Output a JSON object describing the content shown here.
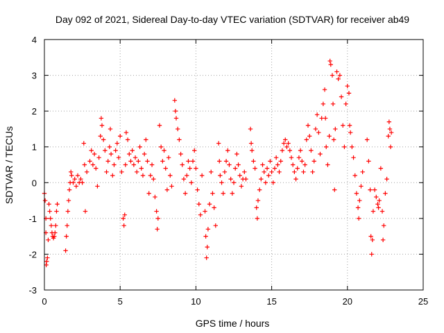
{
  "chart_data": {
    "type": "scatter",
    "title": "Day 092 of 2021, Sidereal Day-to-day VTEC variation (SDTVAR) for receiver ab49",
    "xlabel": "GPS time / hours",
    "ylabel": "SDTVAR / TECUs",
    "xlim": [
      0,
      25
    ],
    "ylim": [
      -3,
      4
    ],
    "xticks": [
      "0",
      "5",
      "10",
      "15",
      "20",
      "25"
    ],
    "yticks": [
      "-3",
      "-2",
      "-1",
      "0",
      "1",
      "2",
      "3",
      "4"
    ],
    "grid": true,
    "marker": "+",
    "color": "#ff0000",
    "series": [
      {
        "name": "SDTVAR",
        "points": [
          [
            0.0,
            -0.3
          ],
          [
            0.05,
            -0.5
          ],
          [
            0.1,
            -1.0
          ],
          [
            0.1,
            -1.4
          ],
          [
            0.12,
            -2.3
          ],
          [
            0.15,
            -2.2
          ],
          [
            0.2,
            -2.1
          ],
          [
            0.25,
            -1.6
          ],
          [
            0.3,
            -0.6
          ],
          [
            0.35,
            -0.8
          ],
          [
            0.4,
            -1.0
          ],
          [
            0.45,
            -1.2
          ],
          [
            0.5,
            -1.4
          ],
          [
            0.55,
            -1.5
          ],
          [
            0.6,
            -1.55
          ],
          [
            0.65,
            -1.5
          ],
          [
            0.7,
            -1.4
          ],
          [
            0.75,
            -1.2
          ],
          [
            0.8,
            -0.8
          ],
          [
            0.85,
            -0.6
          ],
          [
            1.4,
            -1.9
          ],
          [
            1.45,
            -1.5
          ],
          [
            1.5,
            -1.2
          ],
          [
            1.55,
            -0.8
          ],
          [
            1.6,
            -0.5
          ],
          [
            1.65,
            -0.2
          ],
          [
            1.7,
            0.0
          ],
          [
            1.75,
            0.3
          ],
          [
            1.8,
            0.2
          ],
          [
            1.9,
            0.0
          ],
          [
            2.0,
            0.1
          ],
          [
            2.1,
            -0.1
          ],
          [
            2.2,
            0.2
          ],
          [
            2.3,
            0.0
          ],
          [
            2.4,
            0.1
          ],
          [
            2.5,
            0.0
          ],
          [
            2.6,
            1.1
          ],
          [
            2.65,
            0.5
          ],
          [
            2.7,
            -0.8
          ],
          [
            2.8,
            0.3
          ],
          [
            3.0,
            0.6
          ],
          [
            3.1,
            0.9
          ],
          [
            3.2,
            0.5
          ],
          [
            3.3,
            0.8
          ],
          [
            3.4,
            0.4
          ],
          [
            3.5,
            -0.1
          ],
          [
            3.6,
            0.7
          ],
          [
            3.7,
            1.3
          ],
          [
            3.75,
            1.8
          ],
          [
            3.8,
            1.6
          ],
          [
            3.9,
            1.2
          ],
          [
            4.0,
            0.9
          ],
          [
            4.1,
            0.3
          ],
          [
            4.2,
            0.6
          ],
          [
            4.3,
            1.0
          ],
          [
            4.35,
            1.5
          ],
          [
            4.4,
            0.8
          ],
          [
            4.5,
            0.2
          ],
          [
            4.6,
            0.5
          ],
          [
            4.7,
            0.9
          ],
          [
            4.8,
            1.1
          ],
          [
            4.9,
            0.7
          ],
          [
            5.0,
            1.3
          ],
          [
            5.1,
            0.3
          ],
          [
            5.2,
            -1.0
          ],
          [
            5.25,
            -1.2
          ],
          [
            5.3,
            -0.9
          ],
          [
            5.35,
            0.5
          ],
          [
            5.4,
            1.4
          ],
          [
            5.5,
            1.2
          ],
          [
            5.6,
            0.8
          ],
          [
            5.7,
            0.6
          ],
          [
            5.8,
            0.9
          ],
          [
            5.9,
            0.5
          ],
          [
            6.0,
            0.7
          ],
          [
            6.1,
            0.3
          ],
          [
            6.2,
            0.6
          ],
          [
            6.3,
            1.0
          ],
          [
            6.4,
            0.4
          ],
          [
            6.5,
            0.2
          ],
          [
            6.6,
            0.8
          ],
          [
            6.7,
            1.2
          ],
          [
            6.8,
            0.6
          ],
          [
            6.9,
            -0.3
          ],
          [
            7.0,
            0.2
          ],
          [
            7.1,
            0.5
          ],
          [
            7.2,
            0.1
          ],
          [
            7.3,
            -0.4
          ],
          [
            7.4,
            -0.8
          ],
          [
            7.45,
            -1.3
          ],
          [
            7.5,
            -1.0
          ],
          [
            7.6,
            1.6
          ],
          [
            7.7,
            1.0
          ],
          [
            7.8,
            0.6
          ],
          [
            7.9,
            0.9
          ],
          [
            8.0,
            0.4
          ],
          [
            8.1,
            -0.2
          ],
          [
            8.2,
            0.7
          ],
          [
            8.3,
            0.2
          ],
          [
            8.4,
            -0.1
          ],
          [
            8.6,
            2.3
          ],
          [
            8.65,
            2.0
          ],
          [
            8.7,
            1.8
          ],
          [
            8.8,
            1.5
          ],
          [
            8.9,
            1.2
          ],
          [
            9.0,
            0.8
          ],
          [
            9.1,
            0.5
          ],
          [
            9.2,
            0.1
          ],
          [
            9.3,
            -0.3
          ],
          [
            9.4,
            0.2
          ],
          [
            9.5,
            0.6
          ],
          [
            9.6,
            0.4
          ],
          [
            9.7,
            0.0
          ],
          [
            9.8,
            0.6
          ],
          [
            9.9,
            0.9
          ],
          [
            10.0,
            0.4
          ],
          [
            10.1,
            -0.2
          ],
          [
            10.2,
            -0.6
          ],
          [
            10.3,
            -0.9
          ],
          [
            10.4,
            0.2
          ],
          [
            10.6,
            -0.8
          ],
          [
            10.65,
            -1.5
          ],
          [
            10.7,
            -2.1
          ],
          [
            10.75,
            -1.8
          ],
          [
            10.8,
            -1.3
          ],
          [
            10.9,
            -0.6
          ],
          [
            11.0,
            0.3
          ],
          [
            11.1,
            -0.3
          ],
          [
            11.2,
            -0.7
          ],
          [
            11.3,
            -1.2
          ],
          [
            11.5,
            1.1
          ],
          [
            11.55,
            0.6
          ],
          [
            11.6,
            0.2
          ],
          [
            11.7,
            0.0
          ],
          [
            11.8,
            -0.3
          ],
          [
            11.9,
            0.3
          ],
          [
            12.0,
            0.6
          ],
          [
            12.1,
            0.9
          ],
          [
            12.2,
            0.5
          ],
          [
            12.3,
            0.1
          ],
          [
            12.4,
            -0.3
          ],
          [
            12.5,
            0.0
          ],
          [
            12.6,
            0.4
          ],
          [
            12.7,
            0.8
          ],
          [
            12.8,
            0.5
          ],
          [
            12.9,
            0.2
          ],
          [
            13.0,
            -0.1
          ],
          [
            13.1,
            0.1
          ],
          [
            13.2,
            0.3
          ],
          [
            13.3,
            0.1
          ],
          [
            13.6,
            1.5
          ],
          [
            13.65,
            1.1
          ],
          [
            13.7,
            0.9
          ],
          [
            13.8,
            0.6
          ],
          [
            13.9,
            0.4
          ],
          [
            14.0,
            -0.7
          ],
          [
            14.05,
            -1.0
          ],
          [
            14.1,
            -0.5
          ],
          [
            14.2,
            -0.2
          ],
          [
            14.3,
            0.1
          ],
          [
            14.4,
            0.5
          ],
          [
            14.5,
            0.3
          ],
          [
            14.6,
            0.0
          ],
          [
            14.7,
            0.4
          ],
          [
            14.8,
            0.2
          ],
          [
            14.9,
            0.6
          ],
          [
            15.0,
            0.3
          ],
          [
            15.1,
            0.0
          ],
          [
            15.2,
            0.4
          ],
          [
            15.3,
            0.7
          ],
          [
            15.4,
            0.5
          ],
          [
            15.5,
            0.3
          ],
          [
            15.6,
            0.6
          ],
          [
            15.7,
            0.9
          ],
          [
            15.8,
            1.1
          ],
          [
            15.9,
            1.2
          ],
          [
            16.0,
            1.0
          ],
          [
            16.1,
            1.1
          ],
          [
            16.2,
            0.9
          ],
          [
            16.3,
            0.7
          ],
          [
            16.4,
            0.5
          ],
          [
            16.5,
            0.3
          ],
          [
            16.6,
            0.1
          ],
          [
            16.7,
            0.4
          ],
          [
            16.8,
            0.7
          ],
          [
            16.9,
            0.9
          ],
          [
            17.0,
            0.6
          ],
          [
            17.1,
            0.3
          ],
          [
            17.2,
            0.5
          ],
          [
            17.3,
            1.2
          ],
          [
            17.4,
            1.6
          ],
          [
            17.5,
            1.3
          ],
          [
            17.6,
            0.9
          ],
          [
            17.7,
            0.3
          ],
          [
            17.8,
            0.6
          ],
          [
            17.9,
            1.5
          ],
          [
            18.0,
            1.9
          ],
          [
            18.1,
            1.4
          ],
          [
            18.2,
            0.8
          ],
          [
            18.3,
            1.8
          ],
          [
            18.4,
            2.2
          ],
          [
            18.5,
            2.6
          ],
          [
            18.55,
            1.8
          ],
          [
            18.6,
            1.0
          ],
          [
            18.7,
            0.5
          ],
          [
            18.8,
            1.3
          ],
          [
            18.85,
            3.4
          ],
          [
            18.9,
            3.3
          ],
          [
            19.0,
            3.0
          ],
          [
            19.05,
            2.2
          ],
          [
            19.1,
            1.2
          ],
          [
            19.15,
            -0.2
          ],
          [
            19.2,
            1.5
          ],
          [
            19.3,
            3.1
          ],
          [
            19.4,
            2.9
          ],
          [
            19.5,
            3.0
          ],
          [
            19.6,
            2.4
          ],
          [
            19.7,
            1.6
          ],
          [
            19.8,
            1.0
          ],
          [
            19.9,
            2.2
          ],
          [
            20.0,
            2.7
          ],
          [
            20.1,
            2.5
          ],
          [
            20.15,
            1.6
          ],
          [
            20.2,
            1.4
          ],
          [
            20.3,
            1.0
          ],
          [
            20.4,
            0.7
          ],
          [
            20.5,
            0.2
          ],
          [
            20.6,
            -0.3
          ],
          [
            20.7,
            -0.7
          ],
          [
            20.75,
            -1.0
          ],
          [
            20.8,
            -0.5
          ],
          [
            20.9,
            -0.1
          ],
          [
            21.0,
            0.3
          ],
          [
            21.3,
            1.2
          ],
          [
            21.4,
            0.6
          ],
          [
            21.5,
            -0.2
          ],
          [
            21.55,
            -1.5
          ],
          [
            21.6,
            -2.0
          ],
          [
            21.65,
            -1.6
          ],
          [
            21.7,
            -0.8
          ],
          [
            21.8,
            -0.2
          ],
          [
            21.9,
            -0.4
          ],
          [
            22.0,
            -0.6
          ],
          [
            22.05,
            -0.7
          ],
          [
            22.1,
            -0.5
          ],
          [
            22.2,
            0.4
          ],
          [
            22.3,
            -0.8
          ],
          [
            22.35,
            -1.6
          ],
          [
            22.4,
            -1.2
          ],
          [
            22.5,
            -0.3
          ],
          [
            22.6,
            0.1
          ],
          [
            22.7,
            1.3
          ],
          [
            22.75,
            1.7
          ],
          [
            22.8,
            1.5
          ],
          [
            22.85,
            1.0
          ],
          [
            22.9,
            1.4
          ]
        ]
      }
    ]
  }
}
